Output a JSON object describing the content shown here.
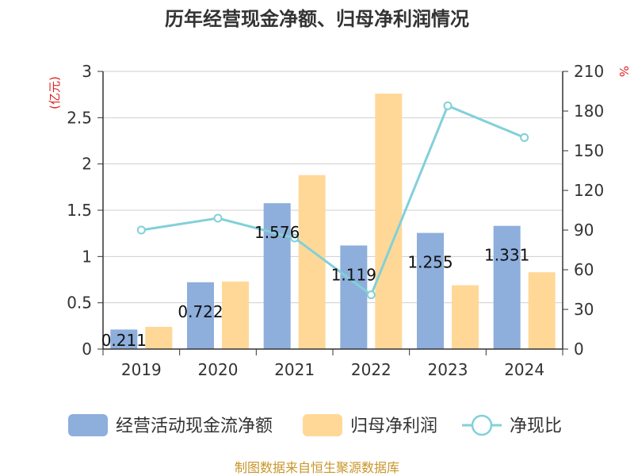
{
  "chart_data": {
    "type": "bar",
    "title": "历年经营现金净额、归母净利润情况",
    "categories": [
      "2019",
      "2020",
      "2021",
      "2022",
      "2023",
      "2024"
    ],
    "series": [
      {
        "name": "经营活动现金流净额",
        "type": "bar",
        "axis": "left",
        "color": "#8eaedc",
        "values": [
          0.211,
          0.722,
          1.576,
          1.119,
          1.255,
          1.331
        ]
      },
      {
        "name": "归母净利润",
        "type": "bar",
        "axis": "left",
        "color": "#ffd898",
        "values": [
          0.24,
          0.73,
          1.88,
          2.76,
          0.69,
          0.83
        ]
      },
      {
        "name": "净现比",
        "type": "line",
        "axis": "right",
        "color": "#82d0d9",
        "values": [
          90,
          99,
          84,
          41,
          184,
          160
        ]
      }
    ],
    "data_labels": [
      "0.211",
      "0.722",
      "1.576",
      "1.119",
      "1.255",
      "1.331"
    ],
    "ylabel": "(亿元)",
    "ylabel_color": "#e02020",
    "y2label": "%",
    "y2label_color": "#e02020",
    "ylim": [
      0,
      3
    ],
    "yticks": [
      0,
      0.5,
      1,
      1.5,
      2,
      2.5,
      3
    ],
    "ytick_labels": [
      "0",
      "0.5",
      "1",
      "1.5",
      "2",
      "2.5",
      "3"
    ],
    "y2lim": [
      0,
      210
    ],
    "y2ticks": [
      0,
      30,
      60,
      90,
      120,
      150,
      180,
      210
    ],
    "y2tick_labels": [
      "0",
      "30",
      "60",
      "90",
      "120",
      "150",
      "180",
      "210"
    ],
    "grid": true,
    "legend_position": "bottom"
  },
  "footer": {
    "source": "制图数据来自恒生聚源数据库",
    "source_color": "#c8962a"
  }
}
